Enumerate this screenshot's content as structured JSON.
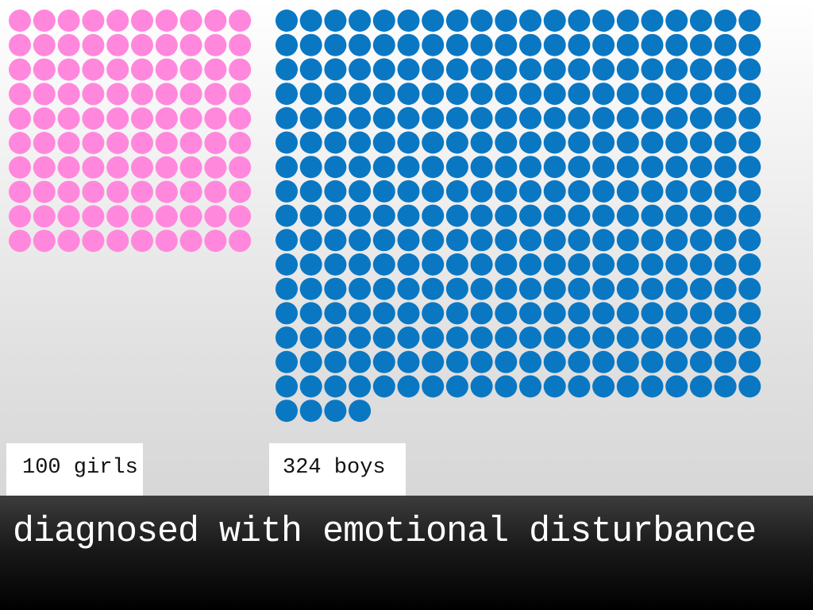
{
  "chart_data": {
    "type": "pictogram",
    "series": [
      {
        "name": "100 girls",
        "value": 100,
        "color": "#ff88dd"
      },
      {
        "name": "324 boys",
        "value": 324,
        "color": "#0a77c3"
      }
    ],
    "caption": "diagnosed with emotional disturbance"
  }
}
